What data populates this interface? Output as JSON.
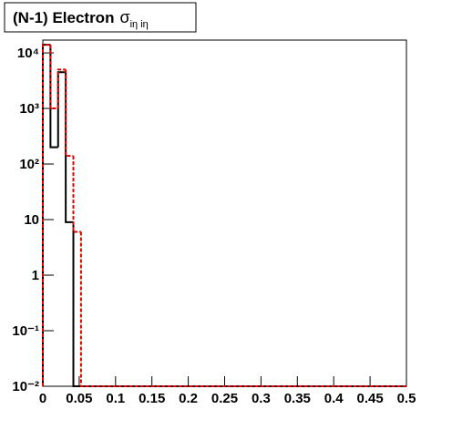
{
  "chart_data": {
    "type": "histogram",
    "title": "(N-1) Electron",
    "title_symbol": "σ",
    "title_subscript": "iη iη",
    "bins": [
      0,
      0.0105,
      0.021,
      0.0315,
      0.042,
      0.0525,
      0.5
    ],
    "series": [
      {
        "color": "#000000",
        "dash": false,
        "values": [
          14000,
          200,
          4500,
          9,
          0,
          0
        ]
      },
      {
        "color": "#e00000",
        "dash": true,
        "values": [
          14000,
          1000,
          5000,
          140,
          6,
          0
        ]
      }
    ],
    "xlim": [
      0,
      0.5
    ],
    "xticks": [
      0,
      0.05,
      0.1,
      0.15,
      0.2,
      0.25,
      0.3,
      0.35,
      0.4,
      0.45,
      0.5
    ],
    "ylim": [
      0.01,
      17000
    ],
    "ylog": true,
    "yticks": [
      {
        "value": 0.01,
        "label": "10⁻²"
      },
      {
        "value": 0.1,
        "label": "10⁻¹"
      },
      1,
      10,
      {
        "value": 100,
        "label": "10²"
      },
      {
        "value": 1000,
        "label": "10³"
      },
      {
        "value": 10000,
        "label": "10⁴"
      }
    ]
  }
}
